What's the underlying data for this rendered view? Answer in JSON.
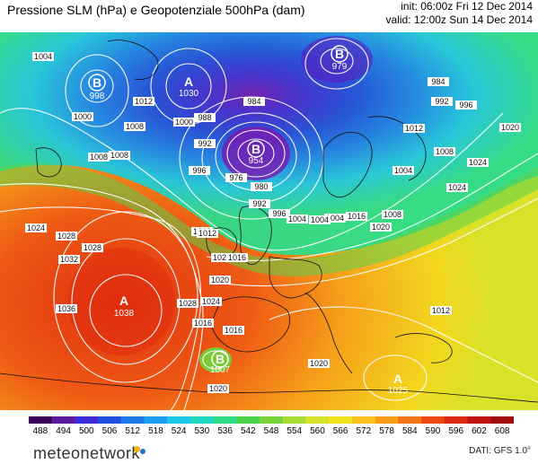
{
  "header": {
    "title": "Pressione SLM (hPa) e Geopotenziale 500hPa (dam)",
    "init": "init: 06:00z Fri 12 Dec 2014",
    "valid": "valid: 12:00z Sun 14 Dec 2014"
  },
  "legend": {
    "ticks": [
      "488",
      "494",
      "500",
      "506",
      "512",
      "518",
      "524",
      "530",
      "536",
      "542",
      "548",
      "554",
      "560",
      "566",
      "572",
      "578",
      "584",
      "590",
      "596",
      "602",
      "608"
    ],
    "colors": [
      "#3a005a",
      "#5a1aa0",
      "#3c2bd8",
      "#1f4fe0",
      "#1c78e8",
      "#1aa0ee",
      "#19c8e6",
      "#20d8c0",
      "#2edc8a",
      "#4ad24a",
      "#7ad23a",
      "#a8dc30",
      "#d4e228",
      "#f2e21c",
      "#f8c21a",
      "#f89c18",
      "#f27414",
      "#ea4a12",
      "#dc2a10",
      "#c01410",
      "#a00e0c"
    ]
  },
  "pressure_centers": [
    {
      "type": "B",
      "value": "998"
    },
    {
      "type": "A",
      "value": "1030"
    },
    {
      "type": "B",
      "value": "979"
    },
    {
      "type": "B",
      "value": "954"
    },
    {
      "type": "A",
      "value": "1038"
    },
    {
      "type": "B",
      "value": "1007"
    },
    {
      "type": "A",
      "value": "1025"
    }
  ],
  "isobar_labels": [
    "1004",
    "1012",
    "1000",
    "1008",
    "1008",
    "1008",
    "1000",
    "988",
    "984",
    "992",
    "996",
    "976",
    "980",
    "992",
    "996",
    "1004",
    "1012",
    "1012",
    "1020",
    "1024",
    "1028",
    "1016",
    "1004",
    "1004",
    "1008",
    "1016",
    "1020",
    "1024",
    "1028",
    "1032",
    "1036",
    "1020",
    "1028",
    "1024",
    "1020",
    "1016",
    "1012",
    "1020",
    "1024",
    "1004",
    "992",
    "984",
    "996",
    "1016",
    "1008",
    "1020",
    "1012"
  ],
  "footer": {
    "brand": "meteonetwork",
    "source": "DATI: GFS 1.0°"
  }
}
